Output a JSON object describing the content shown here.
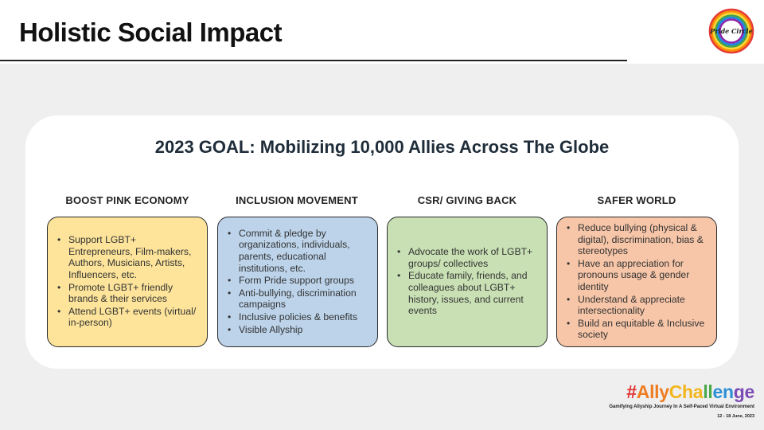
{
  "slide": {
    "title": "Holistic Social Impact",
    "goal": "2023 GOAL: Mobilizing 10,000 Allies Across The Globe"
  },
  "logo": {
    "text": "Pride Circle"
  },
  "columns": [
    {
      "heading": "BOOST PINK ECONOMY",
      "color": "#fde49a",
      "bullets": [
        "Support LGBT+ Entrepreneurs, Film-makers, Authors, Musicians, Artists, Influencers, etc.",
        "Promote LGBT+ friendly brands & their services",
        "Attend LGBT+ events (virtual/ in-person)"
      ]
    },
    {
      "heading": "INCLUSION MOVEMENT",
      "color": "#bcd3ea",
      "bullets": [
        "Commit & pledge by organizations, individuals, parents, educational institutions, etc.",
        "Form Pride support groups",
        "Anti-bullying, discrimination campaigns",
        "Inclusive policies & benefits",
        "Visible Allyship"
      ]
    },
    {
      "heading": "CSR/ GIVING BACK",
      "color": "#c8e0b4",
      "bullets": [
        "Advocate the work of LGBT+ groups/ collectives",
        "Educate family, friends, and colleagues about LGBT+ history, issues, and current events"
      ]
    },
    {
      "heading": "SAFER WORLD",
      "color": "#f7c6a8",
      "bullets": [
        "Reduce bullying (physical & digital), discrimination, bias & stereotypes",
        "Have an appreciation for pronouns usage & gender identity",
        "Understand & appreciate intersectionality",
        "Build an equitable & Inclusive society"
      ]
    }
  ],
  "footer": {
    "hashtag_parts": [
      {
        "text": "#",
        "color": "#e0302f"
      },
      {
        "text": "Ally",
        "color": "#ef7d22"
      },
      {
        "text": "Cha",
        "color": "#f2b51c"
      },
      {
        "text": "ll",
        "color": "#4aa84a"
      },
      {
        "text": "en",
        "color": "#2b8fd6"
      },
      {
        "text": "ge",
        "color": "#7c4bb5"
      }
    ],
    "tagline": "Gamifying Allyship Journey In A Self-Paced Virtual Environment",
    "dates": "12 - 18 June, 2023"
  },
  "rainbow": [
    "#e53935",
    "#fb8c00",
    "#fdd835",
    "#43a047",
    "#1e88e5",
    "#8e24aa"
  ]
}
